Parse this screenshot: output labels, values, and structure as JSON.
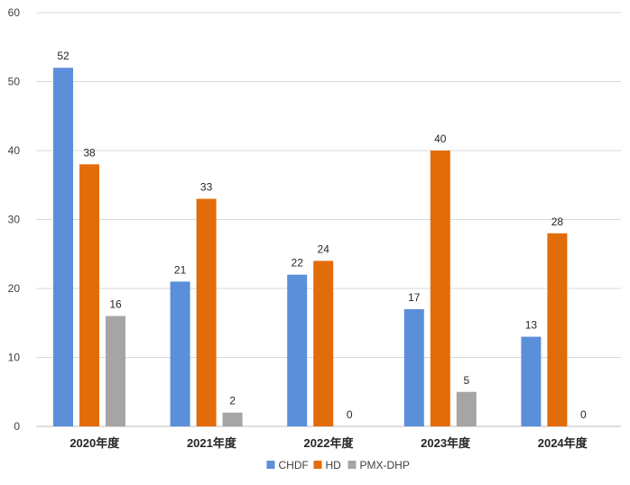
{
  "chart_data": {
    "type": "bar",
    "categories": [
      "2020年度",
      "2021年度",
      "2022年度",
      "2023年度",
      "2024年度"
    ],
    "series": [
      {
        "name": "CHDF",
        "color": "#5b8fd9",
        "values": [
          52,
          21,
          22,
          17,
          13
        ]
      },
      {
        "name": "HD",
        "color": "#e36c0a",
        "values": [
          38,
          33,
          24,
          40,
          28
        ]
      },
      {
        "name": "PMX-DHP",
        "color": "#a5a5a5",
        "values": [
          16,
          2,
          0,
          5,
          0
        ]
      }
    ],
    "title": "",
    "xlabel": "",
    "ylabel": "",
    "ylim": [
      0,
      60
    ],
    "yticks": [
      0,
      10,
      20,
      30,
      40,
      50,
      60
    ],
    "grid": true,
    "legend": "bottom-center",
    "data_labels": true
  }
}
